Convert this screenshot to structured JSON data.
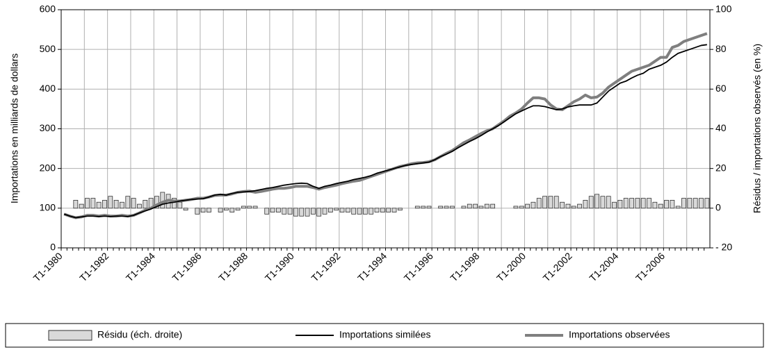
{
  "chart_data": {
    "type": "line",
    "ylabel": "Importations en milliards de dollars",
    "y2label": "Résidus / importations observés (en %)",
    "categories": [
      "T1-1980",
      null,
      null,
      null,
      null,
      null,
      null,
      null,
      "T1-1982",
      null,
      null,
      null,
      null,
      null,
      null,
      null,
      "T1-1984",
      null,
      null,
      null,
      null,
      null,
      null,
      null,
      "T1-1986",
      null,
      null,
      null,
      null,
      null,
      null,
      null,
      "T1-1988",
      null,
      null,
      null,
      null,
      null,
      null,
      null,
      "T1-1990",
      null,
      null,
      null,
      null,
      null,
      null,
      null,
      "T1-1992",
      null,
      null,
      null,
      null,
      null,
      null,
      null,
      "T1-1994",
      null,
      null,
      null,
      null,
      null,
      null,
      null,
      "T1-1996",
      null,
      null,
      null,
      null,
      null,
      null,
      null,
      "T1-1998",
      null,
      null,
      null,
      null,
      null,
      null,
      null,
      "T1-2000",
      null,
      null,
      null,
      null,
      null,
      null,
      null,
      "T1-2002",
      null,
      null,
      null,
      null,
      null,
      null,
      null,
      "T1-2004",
      null,
      null,
      null,
      null,
      null,
      null,
      null,
      "T1-2006",
      null,
      null,
      null,
      null,
      null,
      null,
      null
    ],
    "series": [
      {
        "name": "Résidu (éch. droite)",
        "type": "bar",
        "axis": "y2",
        "color": "#d9d9d9",
        "values": [
          0,
          0,
          4,
          2,
          5,
          5,
          3,
          4,
          6,
          4,
          3,
          6,
          5,
          2,
          4,
          5,
          6,
          8,
          7,
          5,
          3,
          -1,
          0,
          -3,
          -2,
          -2,
          0,
          -2,
          -1,
          -2,
          -1,
          1,
          1,
          1,
          0,
          -3,
          -2,
          -2,
          -3,
          -3,
          -4,
          -4,
          -4,
          -3,
          -4,
          -3,
          -2,
          -1,
          -2,
          -2,
          -3,
          -3,
          -3,
          -3,
          -2,
          -2,
          -2,
          -2,
          -1,
          0,
          0,
          1,
          1,
          1,
          0,
          1,
          1,
          1,
          0,
          1,
          2,
          2,
          1,
          2,
          2,
          0,
          0,
          0,
          1,
          1,
          2,
          3,
          5,
          6,
          6,
          6,
          3,
          2,
          1,
          2,
          4,
          6,
          7,
          6,
          6,
          3,
          4,
          5,
          5,
          5,
          5,
          5,
          3,
          2,
          4,
          4,
          1,
          5,
          5,
          5,
          5,
          5
        ]
      },
      {
        "name": "Importations similées",
        "type": "line",
        "color": "#000000",
        "values": [
          85,
          80,
          76,
          78,
          80,
          80,
          79,
          80,
          79,
          80,
          80,
          79,
          82,
          88,
          93,
          98,
          104,
          110,
          113,
          115,
          118,
          120,
          122,
          123,
          124,
          128,
          133,
          135,
          133,
          137,
          140,
          141,
          142,
          144,
          147,
          150,
          152,
          155,
          158,
          160,
          162,
          163,
          162,
          155,
          150,
          155,
          158,
          162,
          165,
          168,
          172,
          175,
          178,
          182,
          188,
          192,
          196,
          200,
          204,
          208,
          210,
          212,
          214,
          216,
          222,
          230,
          236,
          243,
          252,
          260,
          268,
          275,
          283,
          292,
          300,
          308,
          318,
          328,
          338,
          345,
          352,
          358,
          358,
          356,
          352,
          348,
          350,
          355,
          358,
          360,
          360,
          360,
          365,
          380,
          395,
          405,
          415,
          420,
          428,
          435,
          440,
          450,
          455,
          460,
          468,
          480,
          490,
          495,
          500,
          505,
          510,
          512
        ]
      },
      {
        "name": "Importations observées",
        "type": "line",
        "color": "#7f7f7f",
        "values": [
          85,
          80,
          76,
          78,
          82,
          82,
          80,
          82,
          80,
          80,
          82,
          80,
          82,
          88,
          95,
          100,
          108,
          115,
          120,
          118,
          118,
          120,
          122,
          125,
          125,
          128,
          132,
          133,
          133,
          136,
          140,
          142,
          143,
          140,
          142,
          145,
          148,
          150,
          150,
          152,
          155,
          155,
          155,
          152,
          148,
          152,
          155,
          158,
          162,
          165,
          168,
          170,
          175,
          180,
          185,
          190,
          195,
          200,
          205,
          208,
          212,
          214,
          215,
          217,
          222,
          230,
          238,
          245,
          255,
          265,
          272,
          280,
          288,
          295,
          300,
          310,
          320,
          332,
          340,
          350,
          365,
          378,
          378,
          375,
          360,
          350,
          348,
          358,
          368,
          375,
          385,
          378,
          380,
          390,
          405,
          415,
          425,
          435,
          445,
          450,
          455,
          460,
          470,
          480,
          480,
          505,
          510,
          520,
          525,
          530,
          535,
          540
        ]
      }
    ],
    "ylim": [
      0,
      600
    ],
    "yticks": [
      0,
      100,
      200,
      300,
      400,
      500,
      600
    ],
    "y2lim": [
      -20,
      100
    ],
    "y2ticks": [
      {
        "value": -20,
        "label": "- 20"
      },
      0,
      20,
      40,
      60,
      80,
      100
    ],
    "grid": true,
    "legend": "bottom"
  }
}
